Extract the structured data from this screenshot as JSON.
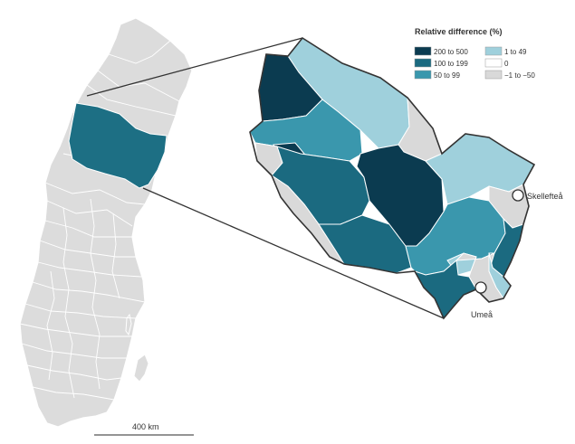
{
  "map": {
    "highlight_color": "#1d6f84",
    "scale_label": "400 km"
  },
  "legend": {
    "title": "Relative difference (%)",
    "items": [
      {
        "label": "200 to 500",
        "color": "#0b3b50"
      },
      {
        "label": "1 to 49",
        "color": "#9fd0dc"
      },
      {
        "label": "100 to 199",
        "color": "#1b6a80"
      },
      {
        "label": "0",
        "color": "#ffffff"
      },
      {
        "label": "50 to 99",
        "color": "#3a97ad"
      },
      {
        "label": "−1 to −50",
        "color": "#d9d9d9"
      }
    ]
  },
  "cities": [
    {
      "name": "Skellefteå"
    },
    {
      "name": "Umeå"
    }
  ]
}
